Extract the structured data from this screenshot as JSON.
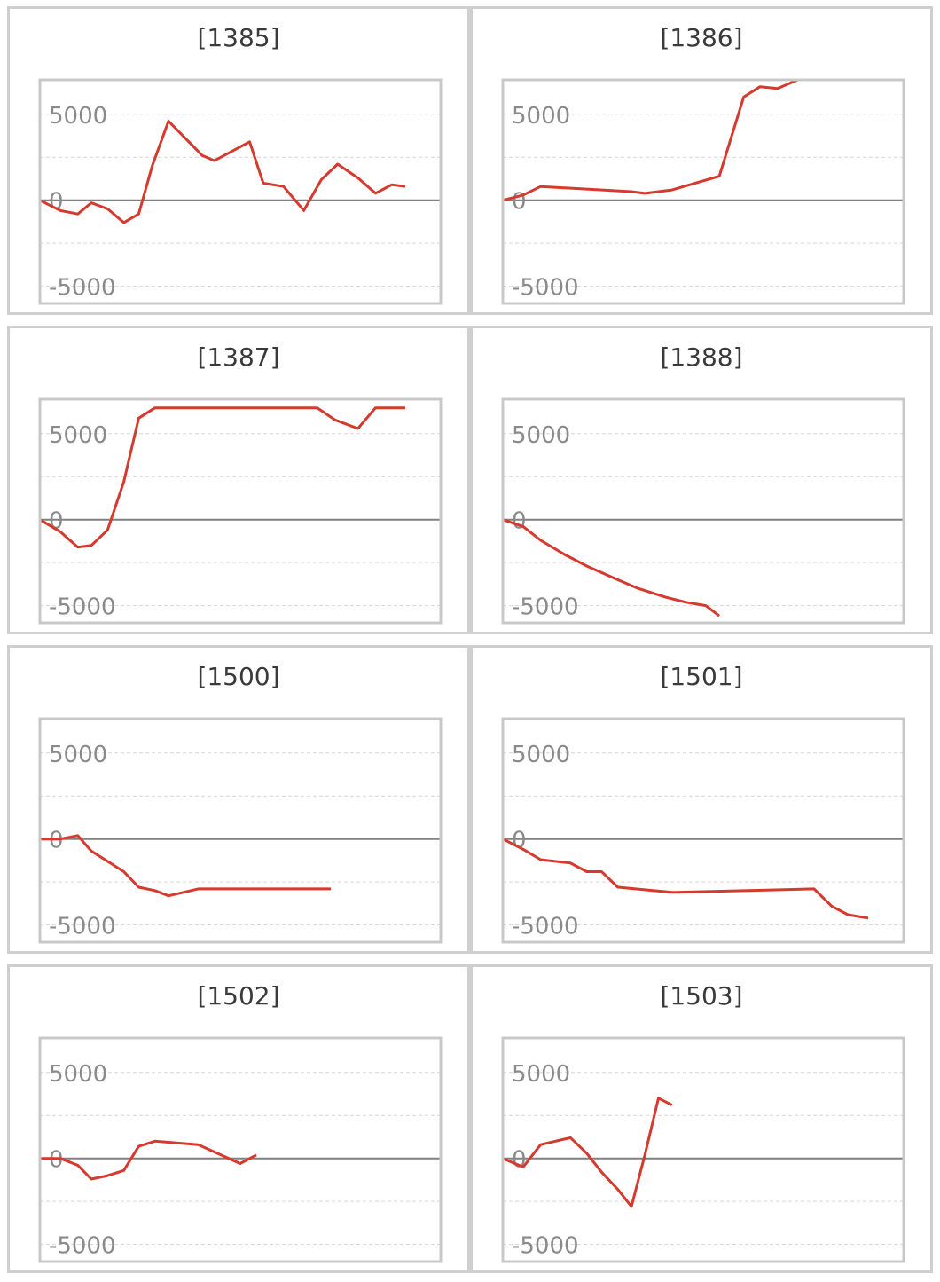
{
  "colors": {
    "line": "#d63a2f",
    "zero": "#808080",
    "grid": "#d6d6d6",
    "frame": "#c8c8c8",
    "panel_border": "#cfcfcf"
  },
  "chart_data": [
    {
      "type": "line",
      "title": "[1385]",
      "ylim": [
        -6000,
        7000
      ],
      "xlim": [
        0,
        27
      ],
      "yticks": [
        5000,
        0,
        -5000
      ],
      "grid": true,
      "series": [
        {
          "values": [
            [
              0,
              0
            ],
            [
              1.5,
              -600
            ],
            [
              2.8,
              -800
            ],
            [
              3.8,
              -150
            ],
            [
              5,
              -500
            ],
            [
              6.2,
              -1300
            ],
            [
              7.3,
              -800
            ],
            [
              8.3,
              2000
            ],
            [
              9.5,
              4600
            ],
            [
              11,
              3400
            ],
            [
              12,
              2600
            ],
            [
              12.9,
              2300
            ],
            [
              15.5,
              3400
            ],
            [
              16.5,
              1000
            ],
            [
              18,
              800
            ],
            [
              19.5,
              -600
            ],
            [
              20.8,
              1200
            ],
            [
              22,
              2100
            ],
            [
              23.5,
              1300
            ],
            [
              24.8,
              400
            ],
            [
              26,
              900
            ],
            [
              27,
              800
            ]
          ]
        }
      ]
    },
    {
      "type": "line",
      "title": "[1386]",
      "ylim": [
        -6000,
        7000
      ],
      "xlim": [
        0,
        27
      ],
      "yticks": [
        5000,
        0,
        -5000
      ],
      "grid": true,
      "series": [
        {
          "values": [
            [
              0,
              0
            ],
            [
              1.5,
              300
            ],
            [
              2.8,
              800
            ],
            [
              9.5,
              500
            ],
            [
              10.5,
              400
            ],
            [
              12.5,
              600
            ],
            [
              16,
              1400
            ],
            [
              17.8,
              6000
            ],
            [
              19,
              6600
            ],
            [
              20.3,
              6500
            ],
            [
              21.8,
              7000
            ],
            [
              27,
              7000
            ]
          ]
        }
      ]
    },
    {
      "type": "line",
      "title": "[1387]",
      "ylim": [
        -6000,
        7000
      ],
      "xlim": [
        0,
        27
      ],
      "yticks": [
        5000,
        0,
        -5000
      ],
      "grid": true,
      "series": [
        {
          "values": [
            [
              0,
              0
            ],
            [
              1.5,
              -700
            ],
            [
              2.8,
              -1600
            ],
            [
              3.8,
              -1500
            ],
            [
              5,
              -600
            ],
            [
              6.2,
              2200
            ],
            [
              7.3,
              5900
            ],
            [
              8.5,
              6500
            ],
            [
              20.5,
              6500
            ],
            [
              21.8,
              5800
            ],
            [
              23.5,
              5300
            ],
            [
              24.8,
              6500
            ],
            [
              27,
              6500
            ]
          ]
        }
      ]
    },
    {
      "type": "line",
      "title": "[1388]",
      "ylim": [
        -6000,
        7000
      ],
      "xlim": [
        0,
        27
      ],
      "yticks": [
        5000,
        0,
        -5000
      ],
      "grid": true,
      "series": [
        {
          "values": [
            [
              0,
              0
            ],
            [
              1.5,
              -400
            ],
            [
              2.8,
              -1200
            ],
            [
              4.5,
              -2000
            ],
            [
              6.2,
              -2700
            ],
            [
              8.5,
              -3500
            ],
            [
              10,
              -4000
            ],
            [
              12,
              -4500
            ],
            [
              13.5,
              -4800
            ],
            [
              15,
              -5000
            ],
            [
              16,
              -5600
            ],
            [
              16,
              -5600
            ]
          ]
        }
      ]
    },
    {
      "type": "line",
      "title": "[1500]",
      "ylim": [
        -6000,
        7000
      ],
      "xlim": [
        0,
        27
      ],
      "yticks": [
        5000,
        0,
        -5000
      ],
      "grid": true,
      "series": [
        {
          "values": [
            [
              0,
              0
            ],
            [
              1.5,
              0
            ],
            [
              2.8,
              200
            ],
            [
              3.8,
              -700
            ],
            [
              5,
              -1300
            ],
            [
              6.2,
              -1900
            ],
            [
              7.3,
              -2800
            ],
            [
              8.5,
              -3000
            ],
            [
              9.5,
              -3300
            ],
            [
              11.7,
              -2900
            ],
            [
              21.5,
              -2900
            ]
          ]
        }
      ]
    },
    {
      "type": "line",
      "title": "[1501]",
      "ylim": [
        -6000,
        7000
      ],
      "xlim": [
        0,
        27
      ],
      "yticks": [
        5000,
        0,
        -5000
      ],
      "grid": true,
      "series": [
        {
          "values": [
            [
              0,
              0
            ],
            [
              1.5,
              -600
            ],
            [
              2.8,
              -1200
            ],
            [
              5,
              -1400
            ],
            [
              6.2,
              -1900
            ],
            [
              7.3,
              -1900
            ],
            [
              8.5,
              -2800
            ],
            [
              12.5,
              -3100
            ],
            [
              23,
              -2900
            ],
            [
              24.3,
              -3900
            ],
            [
              25.5,
              -4400
            ],
            [
              27,
              -4600
            ]
          ]
        }
      ]
    },
    {
      "type": "line",
      "title": "[1502]",
      "ylim": [
        -6000,
        7000
      ],
      "xlim": [
        0,
        27
      ],
      "yticks": [
        5000,
        0,
        -5000
      ],
      "grid": true,
      "series": [
        {
          "values": [
            [
              0,
              0
            ],
            [
              1.5,
              0
            ],
            [
              2.8,
              -400
            ],
            [
              3.8,
              -1200
            ],
            [
              5,
              -1000
            ],
            [
              6.2,
              -700
            ],
            [
              7.3,
              700
            ],
            [
              8.5,
              1000
            ],
            [
              11.7,
              800
            ],
            [
              14.8,
              -300
            ],
            [
              16,
              200
            ]
          ]
        }
      ]
    },
    {
      "type": "line",
      "title": "[1503]",
      "ylim": [
        -6000,
        7000
      ],
      "xlim": [
        0,
        27
      ],
      "yticks": [
        5000,
        0,
        -5000
      ],
      "grid": true,
      "series": [
        {
          "values": [
            [
              0,
              0
            ],
            [
              1.5,
              -500
            ],
            [
              2.8,
              800
            ],
            [
              5,
              1200
            ],
            [
              6.2,
              300
            ],
            [
              7.3,
              -800
            ],
            [
              8.5,
              -1800
            ],
            [
              9.5,
              -2800
            ],
            [
              10.5,
              200
            ],
            [
              11.5,
              3500
            ],
            [
              12.5,
              3100
            ]
          ]
        }
      ]
    }
  ]
}
